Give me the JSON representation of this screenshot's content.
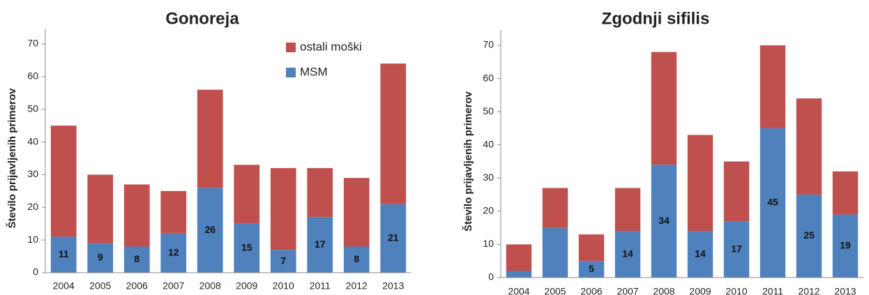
{
  "chart_data": [
    {
      "type": "bar",
      "stacked": true,
      "title": "Gonoreja",
      "y_label": "Število prijavljenih primerov",
      "categories": [
        "2004",
        "2005",
        "2006",
        "2007",
        "2008",
        "2009",
        "2010",
        "2011",
        "2012",
        "2013"
      ],
      "series": [
        {
          "name": "MSM",
          "color": "#4f81bd",
          "values": [
            11,
            9,
            8,
            12,
            26,
            15,
            7,
            17,
            8,
            21
          ],
          "value_labels": [
            "11",
            "9",
            "8",
            "12",
            "26",
            "15",
            "7",
            "17",
            "8",
            "21"
          ]
        },
        {
          "name": "ostali moški",
          "color": "#c0504d",
          "values": [
            34,
            21,
            19,
            13,
            30,
            18,
            25,
            15,
            21,
            43
          ]
        }
      ],
      "ylim": [
        0,
        70
      ],
      "yticks": [
        0,
        10,
        20,
        30,
        40,
        50,
        60,
        70
      ],
      "legend": "upper right"
    },
    {
      "type": "bar",
      "stacked": true,
      "title": "Zgodnji sifilis",
      "y_label": "Število prijavljenih primerov",
      "categories": [
        "2004",
        "2005",
        "2006",
        "2007",
        "2008",
        "2009",
        "2010",
        "2011",
        "2012",
        "2013"
      ],
      "series": [
        {
          "color": "#4f81bd",
          "values": [
            2,
            15,
            5,
            14,
            34,
            14,
            17,
            45,
            25,
            19
          ],
          "value_labels": [
            null,
            null,
            "5",
            "14",
            "34",
            "14",
            "17",
            "45",
            "25",
            "19"
          ]
        },
        {
          "color": "#c0504d",
          "values": [
            8,
            12,
            8,
            13,
            34,
            29,
            18,
            25,
            29,
            13
          ]
        }
      ],
      "ylim": [
        0,
        70
      ],
      "yticks": [
        0,
        10,
        20,
        30,
        40,
        50,
        60,
        70
      ]
    }
  ]
}
